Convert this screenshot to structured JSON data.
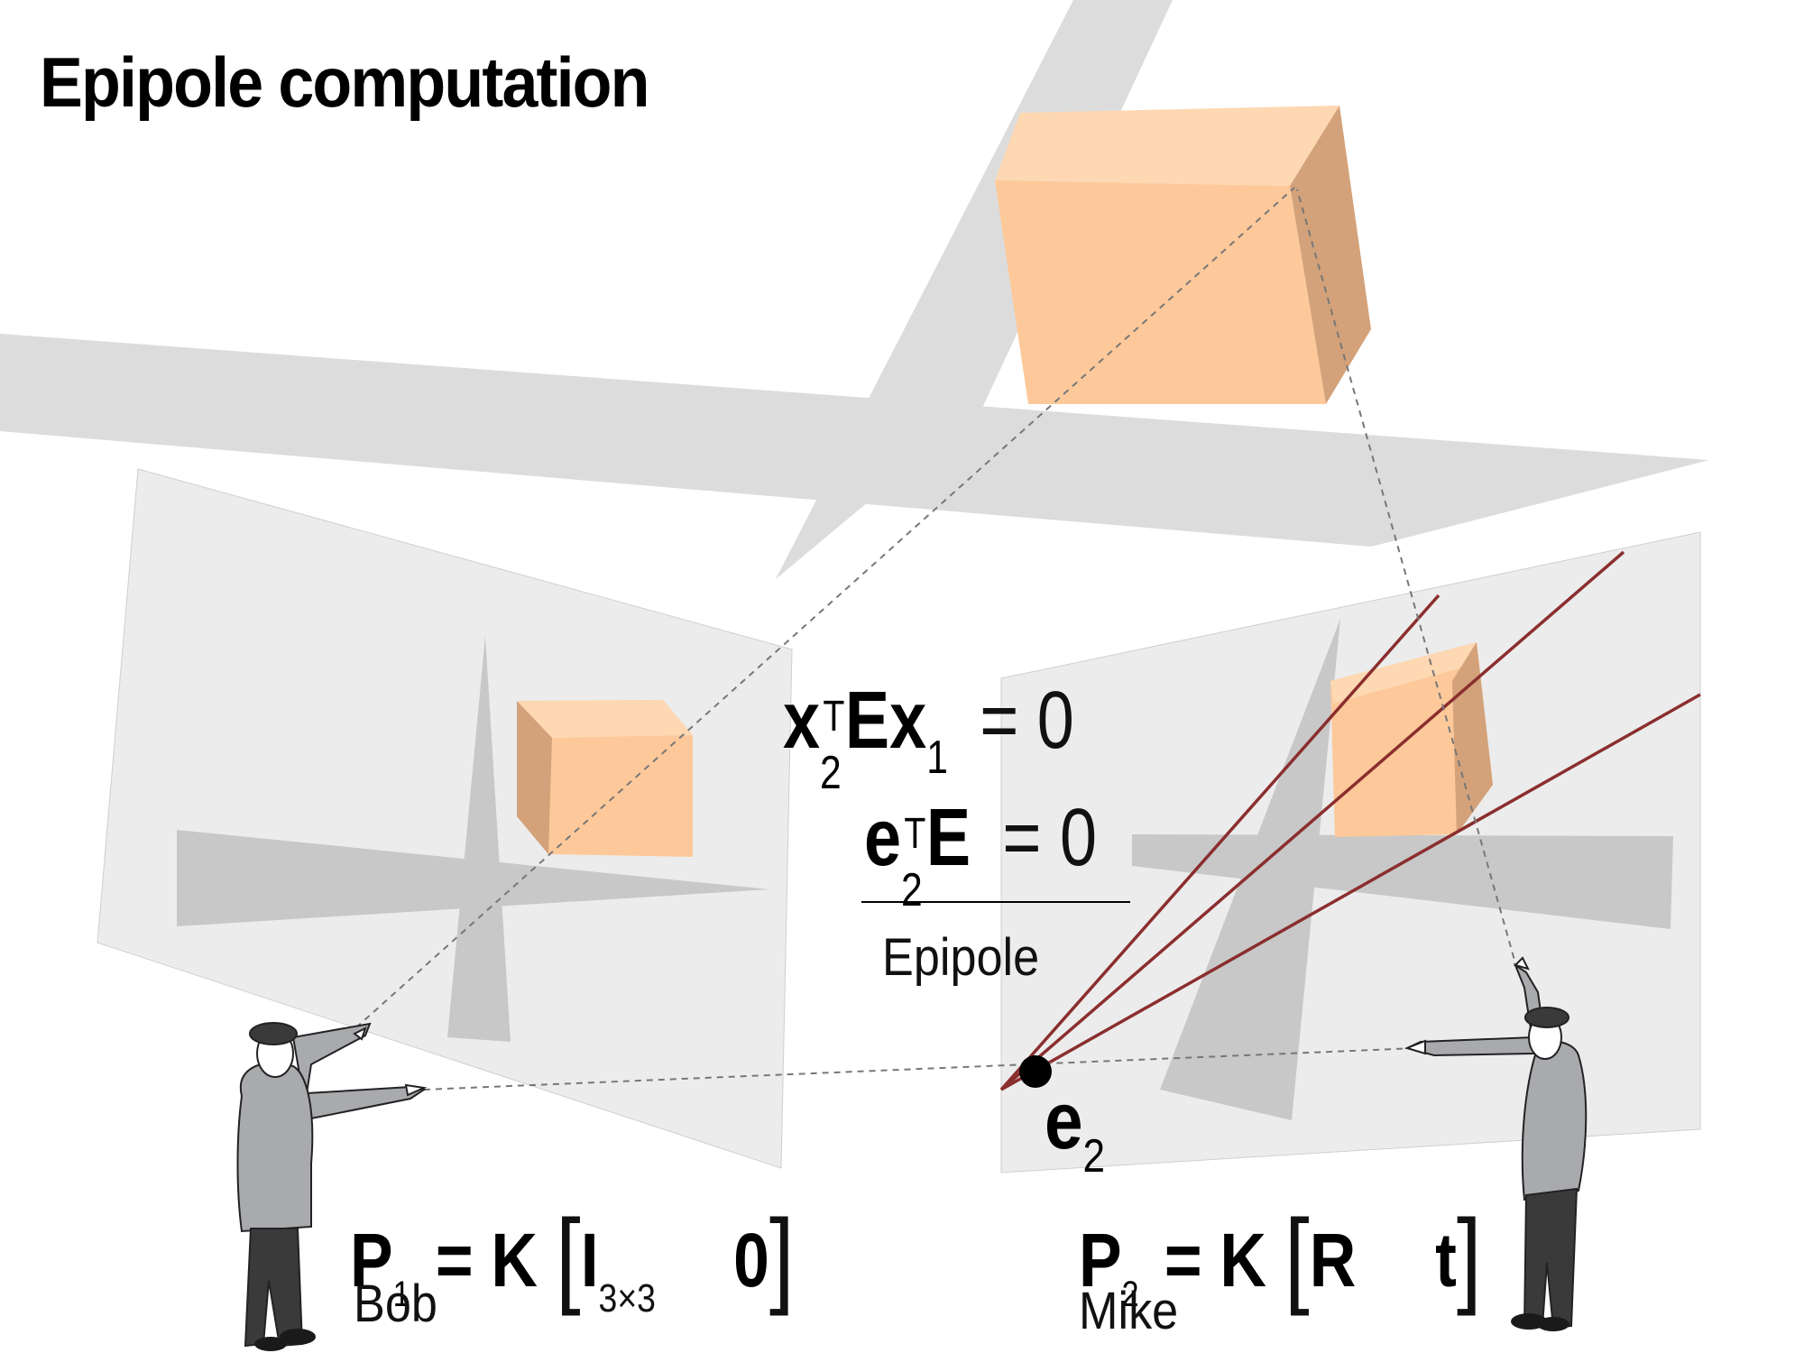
{
  "title": "Epipole computation",
  "equation1": {
    "x": "x",
    "sub2": "2",
    "supT": "T",
    "E": "E",
    "x1": "x",
    "sub1": "1",
    "eq": "= 0"
  },
  "equation2": {
    "e": "e",
    "sub2": "2",
    "supT": "T",
    "E": "E",
    "eq": "= 0"
  },
  "epipole_caption": "Epipole",
  "epipole_label": {
    "e": "e",
    "sub": "2"
  },
  "camera1": {
    "P": "P",
    "sub": "1",
    "eqK": "= K",
    "I": "I",
    "Isub": "3×3",
    "zero": "0",
    "name": "Bob"
  },
  "camera2": {
    "P": "P",
    "sub": "2",
    "eqK": "= K",
    "R": "R",
    "t": "t",
    "name": "Mike"
  },
  "colors": {
    "box_front": "#fdc99a",
    "box_side": "#d3a27a",
    "box_top": "#fdd8b2",
    "shadow": "#dcdcdc",
    "image_plane": "#ececec",
    "epipolar_line": "#8b2e2e"
  }
}
